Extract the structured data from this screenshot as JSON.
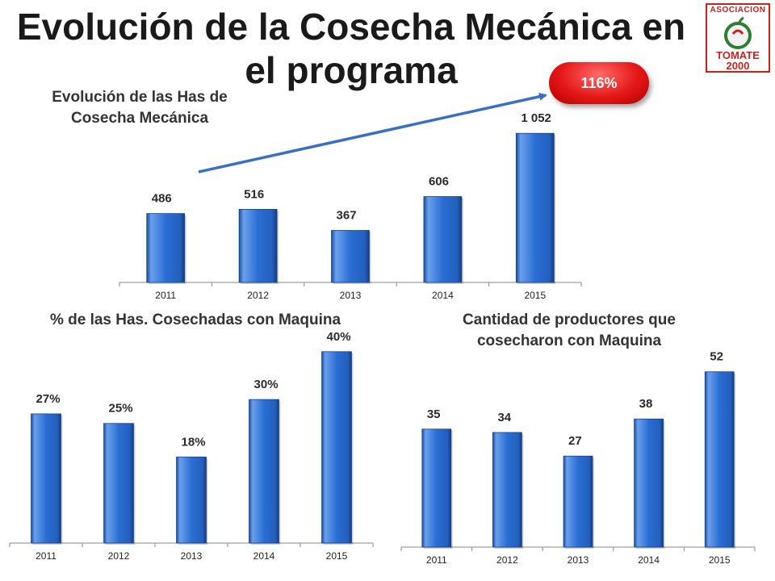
{
  "title": "Evolución de la Cosecha Mecánica en el programa",
  "logo": {
    "top_text": "ASOCIACION",
    "bottom_text": "TOMATE 2000"
  },
  "badge": {
    "label": "116%"
  },
  "colors": {
    "bar": "#2a6ed4",
    "bar_dark": "#1a4e9e",
    "bar_light": "#6aa0ec",
    "badge": "#e51717",
    "arrow": "#3a6fc4"
  },
  "chart_data": [
    {
      "type": "bar",
      "title": "Evolución de las Has de Cosecha Mecánica",
      "categories": [
        "2011",
        "2012",
        "2013",
        "2014",
        "2015"
      ],
      "values": [
        486,
        516,
        367,
        606,
        1052
      ],
      "value_labels": [
        "486",
        "516",
        "367",
        "606",
        "1 052"
      ],
      "ylim": [
        0,
        1150
      ],
      "xlabel": "",
      "ylabel": "",
      "grid": false
    },
    {
      "type": "bar",
      "title": "% de las Has. Cosechadas con Maquina",
      "categories": [
        "2011",
        "2012",
        "2013",
        "2014",
        "2015"
      ],
      "values": [
        27,
        25,
        18,
        30,
        40
      ],
      "value_labels": [
        "27%",
        "25%",
        "18%",
        "30%",
        "40%"
      ],
      "ylim": [
        0,
        43
      ],
      "xlabel": "",
      "ylabel": "",
      "grid": false
    },
    {
      "type": "bar",
      "title": "Cantidad de productores que cosecharon con Maquina",
      "categories": [
        "2011",
        "2012",
        "2013",
        "2014",
        "2015"
      ],
      "values": [
        35,
        34,
        27,
        38,
        52
      ],
      "value_labels": [
        "35",
        "34",
        "27",
        "38",
        "52"
      ],
      "ylim": [
        0,
        56
      ],
      "xlabel": "",
      "ylabel": "",
      "grid": false
    }
  ]
}
